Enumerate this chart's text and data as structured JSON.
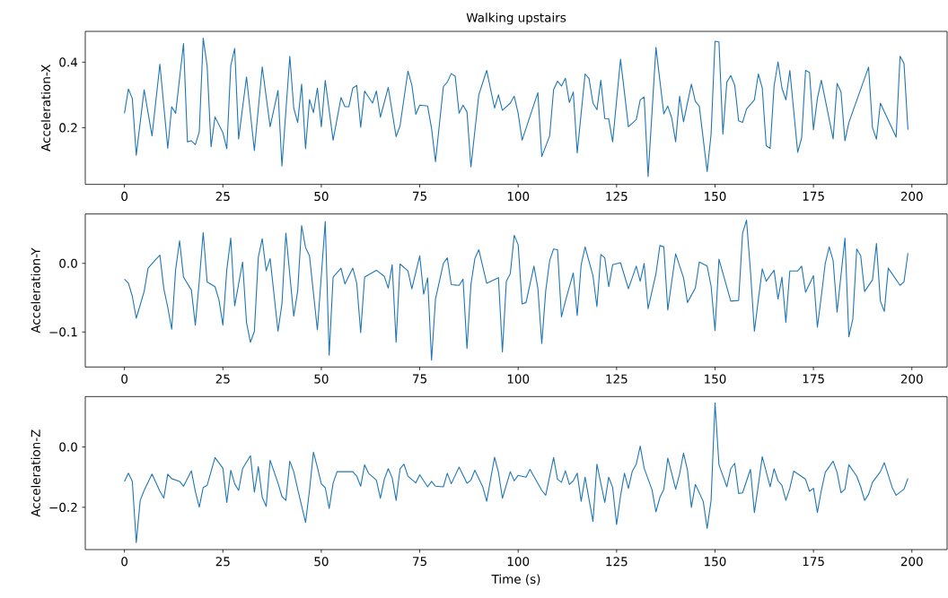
{
  "chart_data": [
    {
      "type": "line",
      "title": "Walking upstairs",
      "ylabel": "Acceleration-X",
      "color": "#1f77b4",
      "xlim": [
        -9.95,
        208.95
      ],
      "xticks": [
        0,
        25,
        50,
        75,
        100,
        125,
        150,
        175,
        200
      ],
      "ylim": [
        0.027,
        0.494
      ],
      "yticks": [
        0.2,
        0.4
      ],
      "x": [
        0,
        1,
        2,
        3,
        5,
        7,
        9,
        11,
        12,
        13,
        15,
        16,
        17,
        18,
        19,
        20,
        21,
        22,
        23,
        25,
        26,
        27,
        28,
        29,
        31,
        33,
        35,
        37,
        39,
        40,
        42,
        43,
        44,
        45,
        46,
        47,
        48,
        49,
        50,
        51,
        53,
        55,
        56,
        57,
        58,
        59,
        60,
        61,
        63,
        64,
        65,
        67,
        69,
        70,
        72,
        73,
        74,
        75,
        77,
        78,
        79,
        81,
        82,
        83,
        84,
        85,
        86,
        87,
        88,
        90,
        92,
        94,
        95,
        96,
        98,
        99,
        100,
        101,
        105,
        106,
        108,
        109,
        110,
        111,
        112,
        113,
        114,
        115,
        117,
        118,
        119,
        120,
        121,
        122,
        123,
        124,
        126,
        127,
        128,
        130,
        131,
        132,
        133,
        135,
        137,
        138,
        139,
        140,
        141,
        142,
        144,
        145,
        146,
        148,
        149,
        150,
        151,
        152,
        153,
        154,
        155,
        156,
        157,
        158,
        160,
        161,
        162,
        163,
        164,
        165,
        166,
        167,
        168,
        169,
        171,
        172,
        173,
        174,
        175,
        176,
        177,
        180,
        181,
        182,
        183,
        184,
        189,
        190,
        191,
        192,
        196,
        197,
        198,
        199
      ],
      "values": [
        0.244,
        0.318,
        0.289,
        0.116,
        0.316,
        0.175,
        0.394,
        0.137,
        0.264,
        0.244,
        0.457,
        0.157,
        0.16,
        0.148,
        0.187,
        0.473,
        0.389,
        0.142,
        0.233,
        0.185,
        0.136,
        0.389,
        0.442,
        0.166,
        0.355,
        0.13,
        0.386,
        0.203,
        0.314,
        0.083,
        0.418,
        0.26,
        0.216,
        0.333,
        0.136,
        0.286,
        0.246,
        0.321,
        0.203,
        0.344,
        0.162,
        0.292,
        0.264,
        0.264,
        0.321,
        0.329,
        0.201,
        0.312,
        0.275,
        0.312,
        0.232,
        0.323,
        0.173,
        0.206,
        0.373,
        0.33,
        0.241,
        0.269,
        0.266,
        0.198,
        0.096,
        0.325,
        0.339,
        0.365,
        0.357,
        0.244,
        0.269,
        0.248,
        0.08,
        0.3,
        0.375,
        0.26,
        0.3,
        0.253,
        0.275,
        0.296,
        0.244,
        0.162,
        0.307,
        0.112,
        0.175,
        0.316,
        0.342,
        0.327,
        0.351,
        0.277,
        0.309,
        0.123,
        0.364,
        0.35,
        0.275,
        0.255,
        0.345,
        0.228,
        0.227,
        0.157,
        0.409,
        0.307,
        0.203,
        0.225,
        0.285,
        0.294,
        0.051,
        0.445,
        0.242,
        0.266,
        0.23,
        0.157,
        0.296,
        0.218,
        0.333,
        0.28,
        0.266,
        0.066,
        0.18,
        0.464,
        0.462,
        0.18,
        0.339,
        0.359,
        0.33,
        0.221,
        0.216,
        0.257,
        0.285,
        0.364,
        0.321,
        0.145,
        0.137,
        0.327,
        0.401,
        0.321,
        0.285,
        0.375,
        0.125,
        0.169,
        0.375,
        0.369,
        0.194,
        0.289,
        0.345,
        0.166,
        0.335,
        0.309,
        0.16,
        0.216,
        0.385,
        0.2,
        0.165,
        0.275,
        0.171,
        0.418,
        0.396,
        0.194
      ]
    },
    {
      "type": "line",
      "ylabel": "Acceleration-Y",
      "color": "#1f77b4",
      "xlim": [
        -9.95,
        208.95
      ],
      "xticks": [
        0,
        25,
        50,
        75,
        100,
        125,
        150,
        175,
        200
      ],
      "ylim": [
        -0.151,
        0.072
      ],
      "yticks": [
        {
          "value": -0.1,
          "label": "−0.1"
        },
        {
          "value": 0,
          "label": "0.0"
        }
      ],
      "x": [
        0,
        1,
        2,
        3,
        5,
        6,
        8,
        9,
        10,
        11,
        12,
        13,
        14,
        15,
        17,
        18,
        19,
        20,
        21,
        23,
        24,
        25,
        26,
        27,
        28,
        30,
        31,
        32,
        33,
        34,
        35,
        36,
        37,
        39,
        40,
        41,
        43,
        44,
        45,
        46,
        47,
        49,
        51,
        52,
        53,
        55,
        56,
        58,
        59,
        60,
        61,
        64,
        66,
        67,
        68,
        69,
        70,
        72,
        73,
        75,
        76,
        77,
        78,
        79,
        81,
        82,
        83,
        85,
        86,
        87,
        88,
        89,
        90,
        92,
        95,
        96,
        97,
        98,
        99,
        100,
        101,
        102,
        104,
        105,
        106,
        107,
        108,
        109,
        110,
        111,
        112,
        114,
        115,
        116,
        117,
        119,
        120,
        121,
        122,
        123,
        124,
        126,
        128,
        130,
        131,
        132,
        133,
        135,
        136,
        137,
        138,
        140,
        142,
        143,
        145,
        146,
        148,
        149,
        150,
        151,
        154,
        156,
        157,
        158,
        159,
        160,
        161,
        162,
        163,
        165,
        166,
        167,
        168,
        169,
        171,
        172,
        173,
        175,
        176,
        177,
        178,
        179,
        180,
        181,
        183,
        184,
        185,
        186,
        187,
        188,
        190,
        191,
        192,
        193,
        194,
        197,
        198,
        199
      ],
      "values": [
        -0.023,
        -0.029,
        -0.048,
        -0.08,
        -0.041,
        -0.007,
        0.006,
        0.012,
        -0.037,
        -0.064,
        -0.096,
        -0.009,
        0.033,
        -0.02,
        -0.039,
        -0.09,
        -0.026,
        0.045,
        -0.027,
        -0.034,
        -0.053,
        -0.09,
        -0.009,
        0.037,
        -0.062,
        0.002,
        -0.086,
        -0.115,
        -0.099,
        0.009,
        0.036,
        -0.011,
        0.007,
        -0.099,
        -0.059,
        0.044,
        -0.077,
        -0.04,
        0.055,
        0.023,
        0.011,
        -0.097,
        0.061,
        -0.134,
        -0.02,
        -0.007,
        -0.03,
        -0.007,
        -0.029,
        -0.101,
        -0.02,
        -0.01,
        -0.019,
        -0.036,
        -0.002,
        -0.115,
        -0.001,
        -0.011,
        -0.037,
        0.011,
        -0.045,
        -0.021,
        -0.141,
        -0.052,
        0,
        0.008,
        -0.031,
        -0.032,
        -0.023,
        -0.124,
        -0.031,
        0.007,
        0.02,
        -0.029,
        -0.021,
        -0.129,
        -0.026,
        -0.015,
        0.041,
        0.027,
        -0.059,
        -0.057,
        -0.004,
        -0.036,
        -0.117,
        -0.04,
        0.004,
        0.021,
        0.02,
        -0.078,
        -0.055,
        -0.014,
        -0.076,
        -0.002,
        0.024,
        -0.018,
        -0.063,
        0.013,
        0.008,
        -0.034,
        -0.002,
        0.001,
        -0.037,
        -0.004,
        -0.026,
        0,
        -0.066,
        -0.015,
        0.026,
        0.024,
        -0.068,
        0.014,
        -0.021,
        -0.057,
        -0.036,
        0.002,
        -0.004,
        -0.033,
        -0.098,
        0.006,
        -0.055,
        -0.054,
        0.044,
        0.063,
        -0.011,
        -0.099,
        -0.053,
        -0.008,
        -0.026,
        -0.01,
        -0.052,
        -0.02,
        -0.086,
        -0.011,
        -0.011,
        -0.004,
        -0.042,
        -0.018,
        -0.093,
        -0.048,
        0,
        0.024,
        0.004,
        -0.071,
        0.037,
        -0.107,
        -0.081,
        0.021,
        0.011,
        -0.041,
        -0.024,
        0.029,
        -0.055,
        -0.07,
        -0.007,
        -0.032,
        -0.027,
        0.015
      ]
    },
    {
      "type": "line",
      "ylabel": "Acceleration-Z",
      "xlabel": "Time (s)",
      "color": "#1f77b4",
      "xlim": [
        -9.95,
        208.95
      ],
      "xticks": [
        0,
        25,
        50,
        75,
        100,
        125,
        150,
        175,
        200
      ],
      "ylim": [
        -0.34,
        0.167
      ],
      "yticks": [
        {
          "value": -0.2,
          "label": "−0.2"
        },
        {
          "value": 0,
          "label": "0.0"
        }
      ],
      "x": [
        0,
        1,
        2,
        3,
        4,
        5,
        7,
        9,
        10,
        11,
        12,
        14,
        15,
        17,
        18,
        19,
        20,
        21,
        23,
        25,
        26,
        27,
        28,
        29,
        30,
        32,
        33,
        34,
        35,
        36,
        37,
        39,
        40,
        41,
        42,
        43,
        44,
        46,
        47,
        48,
        49,
        50,
        51,
        52,
        53,
        54,
        58,
        59,
        60,
        61,
        62,
        64,
        65,
        66,
        67,
        68,
        69,
        70,
        71,
        72,
        74,
        75,
        77,
        78,
        79,
        81,
        82,
        83,
        85,
        87,
        88,
        89,
        91,
        92,
        94,
        95,
        96,
        98,
        99,
        100,
        102,
        103,
        106,
        107,
        109,
        110,
        111,
        112,
        113,
        114,
        115,
        116,
        117,
        119,
        120,
        122,
        123,
        124,
        125,
        126,
        127,
        128,
        129,
        130,
        131,
        132,
        134,
        135,
        136,
        137,
        138,
        139,
        140,
        141,
        142,
        143,
        144,
        145,
        147,
        148,
        149,
        150,
        151,
        153,
        154,
        155,
        156,
        157,
        159,
        160,
        161,
        162,
        164,
        165,
        166,
        167,
        168,
        169,
        170,
        173,
        174,
        175,
        176,
        177,
        178,
        180,
        181,
        182,
        183,
        184,
        186,
        187,
        188,
        189,
        190,
        192,
        193,
        195,
        196,
        198,
        199
      ],
      "values": [
        -0.114,
        -0.087,
        -0.114,
        -0.317,
        -0.177,
        -0.144,
        -0.09,
        -0.147,
        -0.169,
        -0.09,
        -0.105,
        -0.114,
        -0.13,
        -0.079,
        -0.147,
        -0.199,
        -0.134,
        -0.127,
        -0.035,
        -0.07,
        -0.184,
        -0.077,
        -0.122,
        -0.144,
        -0.072,
        -0.029,
        -0.15,
        -0.065,
        -0.167,
        -0.197,
        -0.044,
        -0.12,
        -0.164,
        -0.177,
        -0.047,
        -0.082,
        -0.14,
        -0.25,
        -0.144,
        -0.017,
        -0.067,
        -0.122,
        -0.135,
        -0.204,
        -0.12,
        -0.082,
        -0.082,
        -0.097,
        -0.13,
        -0.059,
        -0.087,
        -0.11,
        -0.17,
        -0.107,
        -0.072,
        -0.102,
        -0.177,
        -0.072,
        -0.057,
        -0.097,
        -0.119,
        -0.092,
        -0.132,
        -0.114,
        -0.13,
        -0.132,
        -0.087,
        -0.122,
        -0.067,
        -0.12,
        -0.11,
        -0.077,
        -0.132,
        -0.18,
        -0.034,
        -0.084,
        -0.17,
        -0.082,
        -0.112,
        -0.094,
        -0.1,
        -0.074,
        -0.144,
        -0.16,
        -0.035,
        -0.107,
        -0.117,
        -0.079,
        -0.124,
        -0.112,
        -0.087,
        -0.18,
        -0.1,
        -0.247,
        -0.057,
        -0.184,
        -0.1,
        -0.134,
        -0.257,
        -0.162,
        -0.087,
        -0.137,
        -0.08,
        -0.057,
        0.003,
        -0.07,
        -0.142,
        -0.215,
        -0.167,
        -0.14,
        -0.037,
        -0.087,
        -0.14,
        -0.09,
        -0.02,
        -0.077,
        -0.2,
        -0.124,
        -0.18,
        -0.27,
        -0.177,
        0.146,
        -0.059,
        -0.132,
        -0.072,
        -0.054,
        -0.154,
        -0.152,
        -0.074,
        -0.217,
        -0.127,
        -0.032,
        -0.132,
        -0.072,
        -0.112,
        -0.127,
        -0.177,
        -0.137,
        -0.08,
        -0.107,
        -0.147,
        -0.137,
        -0.217,
        -0.144,
        -0.084,
        -0.047,
        -0.084,
        -0.152,
        -0.14,
        -0.059,
        -0.097,
        -0.132,
        -0.177,
        -0.157,
        -0.117,
        -0.082,
        -0.052,
        -0.134,
        -0.16,
        -0.14,
        -0.104
      ]
    }
  ]
}
